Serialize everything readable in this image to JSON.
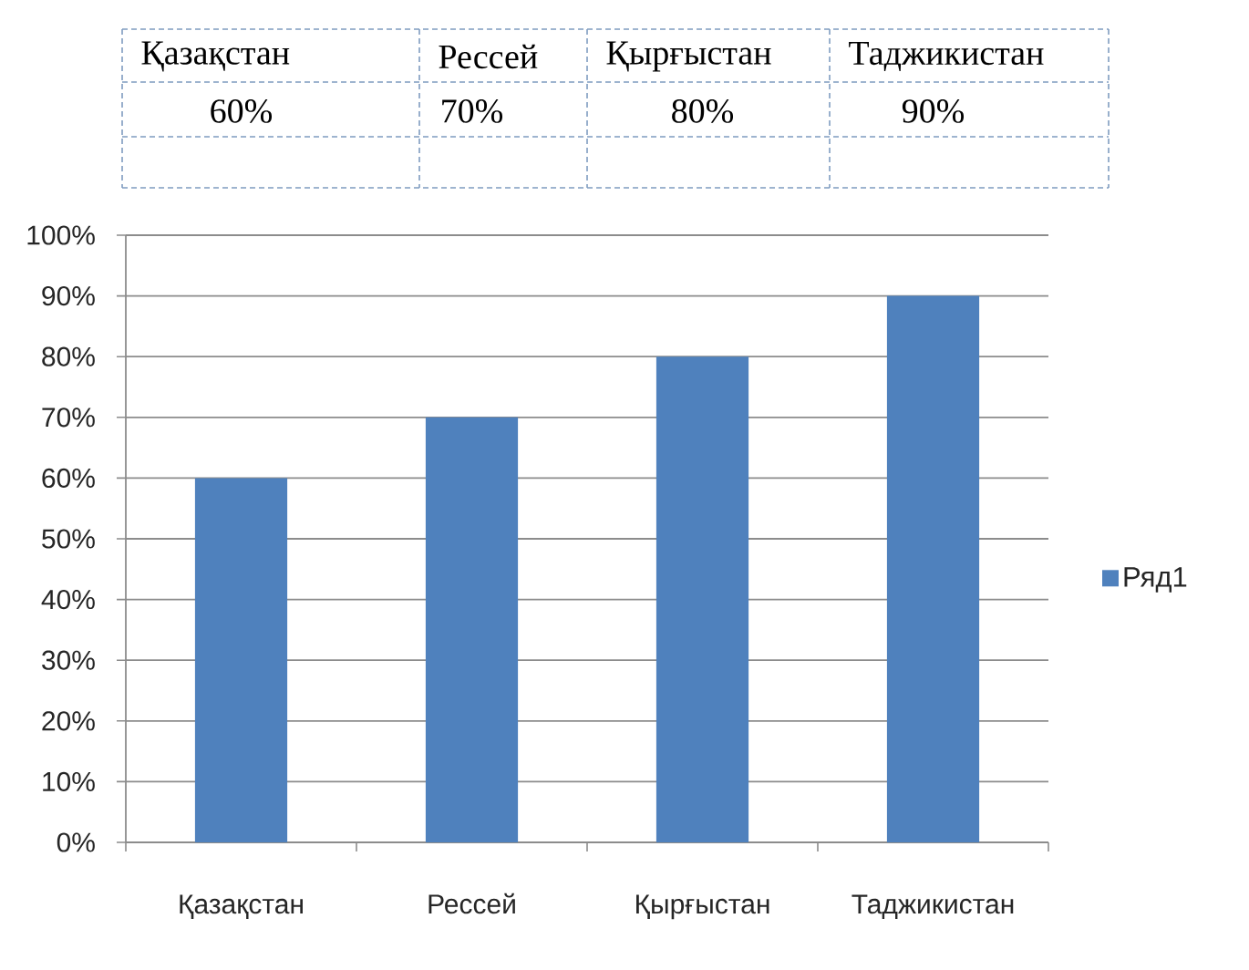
{
  "chart_data": {
    "type": "bar",
    "categories": [
      "Қазақстан",
      "Рессей",
      "Қырғыстан",
      "Таджикистан"
    ],
    "series": [
      {
        "name": "Ряд1",
        "color": "#4f81bd",
        "values": [
          60,
          70,
          80,
          90
        ],
        "value_labels": [
          "60%",
          "70%",
          "80%",
          "90%"
        ]
      }
    ],
    "ylim": [
      0,
      100
    ],
    "yticks": [
      {
        "value": 0,
        "label": "0%"
      },
      {
        "value": 10,
        "label": "10%"
      },
      {
        "value": 20,
        "label": "20%"
      },
      {
        "value": 30,
        "label": "30%"
      },
      {
        "value": 40,
        "label": "40%"
      },
      {
        "value": 50,
        "label": "50%"
      },
      {
        "value": 60,
        "label": "60%"
      },
      {
        "value": 70,
        "label": "70%"
      },
      {
        "value": 80,
        "label": "80%"
      },
      {
        "value": 90,
        "label": "90%"
      },
      {
        "value": 100,
        "label": "100%"
      }
    ],
    "grid": "y",
    "legend": "right"
  }
}
